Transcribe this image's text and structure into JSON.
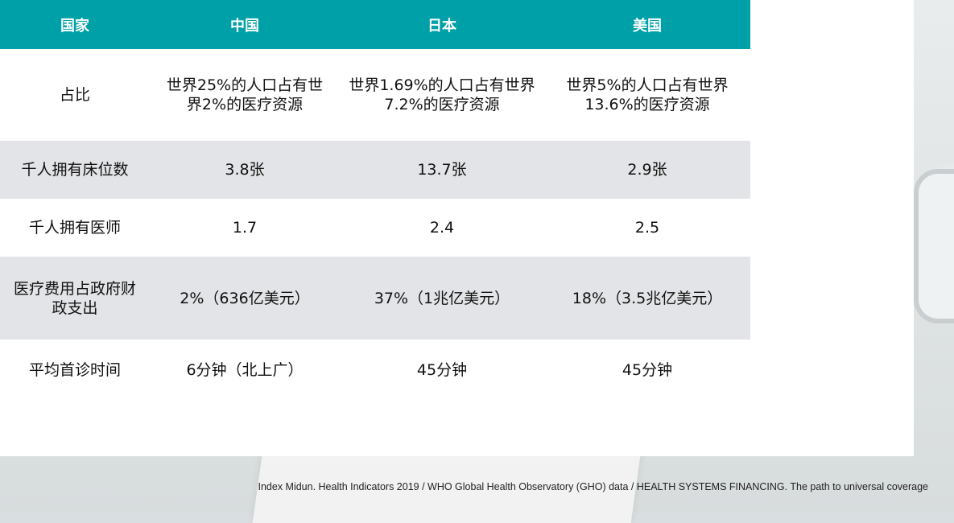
{
  "table": {
    "headers": [
      "国家",
      "中国",
      "日本",
      "美国"
    ],
    "rows": [
      [
        "占比",
        "世界25%的人口占有世界2%的医疗资源",
        "世界1.69%的人口占有世界7.2%的医疗资源",
        "世界5%的人口占有世界13.6%的医疗资源"
      ],
      [
        "千人拥有床位数",
        "3.8张",
        "13.7张",
        "2.9张"
      ],
      [
        "千人拥有医师",
        "1.7",
        "2.4",
        "2.5"
      ],
      [
        "医疗费用占政府财政支出",
        "2%（636亿美元）",
        "37%（1兆亿美元）",
        "18%（3.5兆亿美元）"
      ],
      [
        "平均首诊时间",
        "6分钟（北上广）",
        "45分钟",
        "45分钟"
      ]
    ]
  },
  "source": "Index Midun. Health Indicators 2019 / WHO Global Health Observatory (GHO) data / HEALTH SYSTEMS FINANCING. The path to universal coverage",
  "colors": {
    "header_bg": "#00a0a8",
    "header_text": "#ffffff",
    "stripe_bg": "#e3e4e7"
  }
}
